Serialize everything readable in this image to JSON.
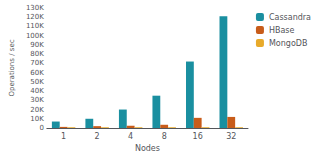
{
  "chart_data": {
    "type": "bar",
    "categories": [
      "1",
      "2",
      "4",
      "8",
      "16",
      "32"
    ],
    "xlabel": "Nodes",
    "ylabel": "Operations / sec",
    "series": [
      {
        "name": "Cassandra",
        "color": "#1a8fa0",
        "values": [
          7000,
          10000,
          20000,
          35000,
          72000,
          121000
        ]
      },
      {
        "name": "HBase",
        "color": "#c85c1a",
        "values": [
          1200,
          2000,
          2500,
          3500,
          11000,
          12000
        ]
      },
      {
        "name": "MongoDB",
        "color": "#e8aa2a",
        "values": [
          800,
          800,
          800,
          800,
          800,
          800
        ]
      }
    ],
    "ylim": [
      0,
      130000
    ],
    "yticks": [
      0,
      {
        "value": 10000,
        "label": "10K"
      },
      {
        "value": 20000,
        "label": "20K"
      },
      {
        "value": 30000,
        "label": "30K"
      },
      {
        "value": 40000,
        "label": "40K"
      },
      {
        "value": 50000,
        "label": "50K"
      },
      {
        "value": 60000,
        "label": "60K"
      },
      {
        "value": 70000,
        "label": "70K"
      },
      {
        "value": 80000,
        "label": "80K"
      },
      {
        "value": 90000,
        "label": "90K"
      },
      {
        "value": 100000,
        "label": "100K"
      },
      {
        "value": 110000,
        "label": "110K"
      },
      {
        "value": 120000,
        "label": "120K"
      },
      {
        "value": 130000,
        "label": "130K"
      }
    ],
    "grid": false,
    "legend": "right"
  }
}
